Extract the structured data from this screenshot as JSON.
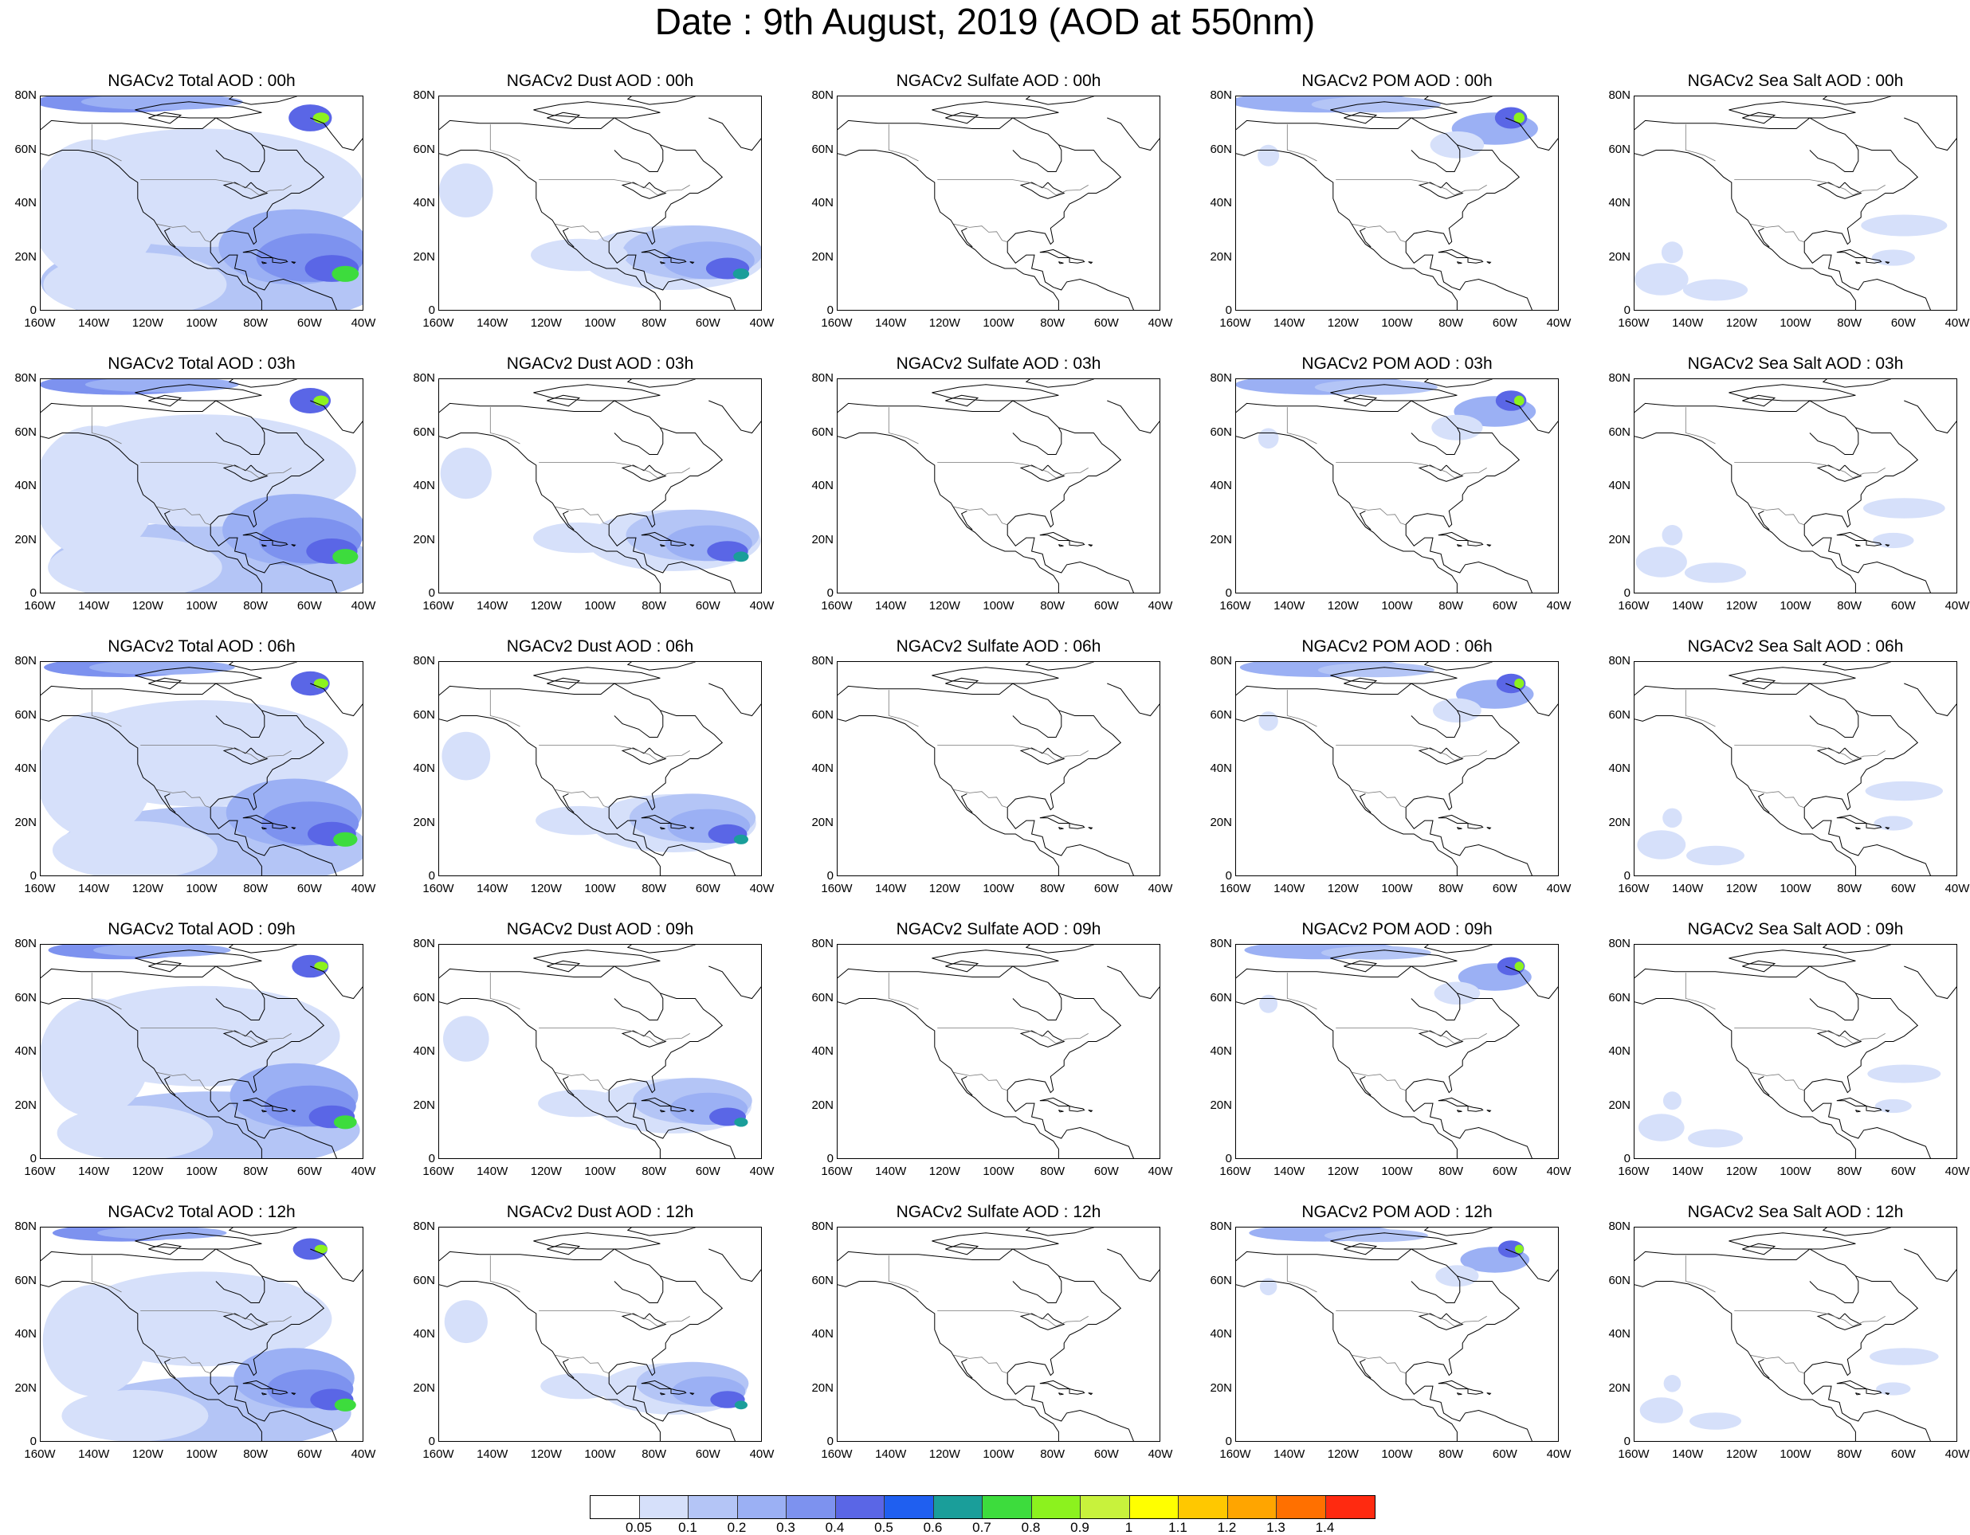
{
  "title": "Date : 9th August, 2019 (AOD at 550nm)",
  "y_ticks": [
    "80N",
    "60N",
    "40N",
    "20N",
    "0"
  ],
  "x_ticks": [
    "160W",
    "140W",
    "120W",
    "100W",
    "80W",
    "60W",
    "40W"
  ],
  "rows": [
    {
      "titles": [
        "NGACv2 Total AOD : 00h",
        "NGACv2 Dust AOD : 00h",
        "NGACv2 Sulfate AOD : 00h",
        "NGACv2 POM AOD : 00h",
        "NGACv2 Sea Salt AOD : 00h"
      ]
    },
    {
      "titles": [
        "NGACv2 Total AOD : 03h",
        "NGACv2 Dust AOD : 03h",
        "NGACv2 Sulfate AOD : 03h",
        "NGACv2 POM AOD : 03h",
        "NGACv2 Sea Salt AOD : 03h"
      ]
    },
    {
      "titles": [
        "NGACv2 Total AOD : 06h",
        "NGACv2 Dust AOD : 06h",
        "NGACv2 Sulfate AOD : 06h",
        "NGACv2 POM AOD : 06h",
        "NGACv2 Sea Salt AOD : 06h"
      ]
    },
    {
      "titles": [
        "NGACv2 Total AOD : 09h",
        "NGACv2 Dust AOD : 09h",
        "NGACv2 Sulfate AOD : 09h",
        "NGACv2 POM AOD : 09h",
        "NGACv2 Sea Salt  AOD : 09h"
      ]
    },
    {
      "titles": [
        "NGACv2 Total AOD  : 12h",
        "NGACv2 Dust AOD : 12h",
        "NGACv2 Sulfate AOD : 12h",
        "NGACv2 POM  AOD : 12h",
        "NGACv2 Sea Salt  AOD : 12h"
      ]
    }
  ],
  "colorbar": {
    "labels": [
      "0.05",
      "0.1",
      "0.2",
      "0.3",
      "0.4",
      "0.5",
      "0.6",
      "0.7",
      "0.8",
      "0.9",
      "1",
      "1.1",
      "1.2",
      "1.3",
      "1.4"
    ],
    "colors": [
      "#ffffff",
      "#d6e0fa",
      "#b4c5f6",
      "#9bb0f4",
      "#7d92ef",
      "#5a66e6",
      "#1f5ff0",
      "#1a9e9a",
      "#3ddc3d",
      "#8cf21e",
      "#c8f23c",
      "#ffff00",
      "#ffc800",
      "#ffa500",
      "#ff7000",
      "#ff2a10"
    ]
  }
}
